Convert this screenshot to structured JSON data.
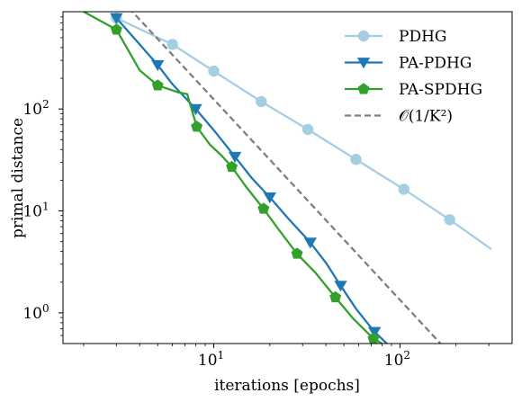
{
  "chart_data": {
    "type": "line",
    "xlabel": "iterations [epochs]",
    "ylabel": "primal distance",
    "xscale": "log",
    "yscale": "log",
    "xlim": [
      1.55,
      400
    ],
    "ylim": [
      0.5,
      900
    ],
    "grid": false,
    "legend_position": "top-right",
    "x_ticks": [
      {
        "value": 10,
        "label": "10",
        "sup": "1"
      },
      {
        "value": 100,
        "label": "10",
        "sup": "2"
      }
    ],
    "y_ticks": [
      {
        "value": 1,
        "label": "10",
        "sup": "0"
      },
      {
        "value": 10,
        "label": "10",
        "sup": "1"
      },
      {
        "value": 100,
        "label": "10",
        "sup": "2"
      }
    ],
    "series": [
      {
        "name": "PDHG",
        "color": "#a6cee3",
        "marker": "circle",
        "x": [
          3,
          6,
          10,
          18,
          32,
          58,
          105,
          185,
          310
        ],
        "y": [
          780,
          430,
          235,
          118,
          63,
          32,
          16.3,
          8.2,
          4.2
        ],
        "markers_at": [
          0,
          1,
          2,
          3,
          4,
          5,
          6,
          7
        ]
      },
      {
        "name": "PA-PDHG",
        "color": "#1f78b4",
        "marker": "triangle-down",
        "x": [
          3,
          4,
          5,
          6,
          8,
          10,
          13,
          16,
          20,
          25,
          33,
          40,
          48,
          58,
          73,
          85
        ],
        "y": [
          780,
          430,
          270,
          175,
          100,
          62,
          34,
          21,
          13.6,
          8.5,
          4.9,
          3.1,
          1.85,
          1.1,
          0.65,
          0.5
        ],
        "markers_at": [
          0,
          2,
          4,
          6,
          8,
          10,
          12,
          14
        ]
      },
      {
        "name": "PA-SPDHG",
        "color": "#33a02c",
        "marker": "pentagon",
        "x": [
          2,
          3,
          4,
          5,
          6.5,
          7.2,
          8.1,
          9.5,
          11,
          12.5,
          15,
          18.5,
          22,
          28,
          35,
          45,
          56,
          72,
          80
        ],
        "y": [
          900,
          600,
          240,
          170,
          145,
          140,
          67,
          45,
          35,
          27,
          17,
          10.5,
          6.8,
          3.8,
          2.5,
          1.42,
          0.88,
          0.56,
          0.5
        ],
        "markers_at": [
          1,
          3,
          6,
          9,
          11,
          13,
          15,
          17
        ]
      },
      {
        "name": "𝒪(1/K²)",
        "color": "#7f7f7f",
        "marker": "none",
        "dashed": true,
        "x": [
          3.5,
          165
        ],
        "y": [
          980,
          0.5
        ]
      }
    ]
  }
}
